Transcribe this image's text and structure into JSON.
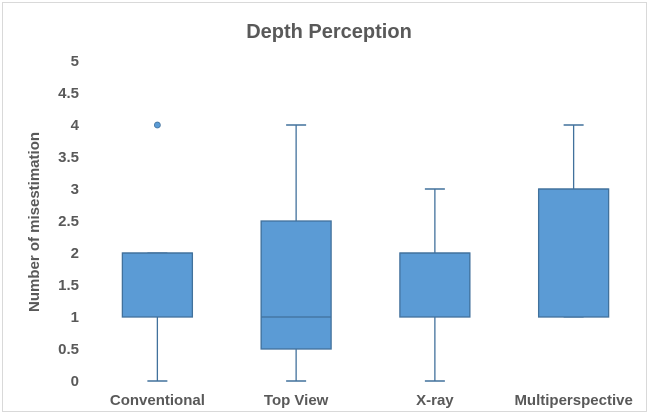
{
  "chart_data": {
    "type": "box",
    "title": "Depth Perception",
    "xlabel": "",
    "ylabel": "Number of misestimation",
    "ylim": [
      0,
      5
    ],
    "yticks": [
      "0",
      "0.5",
      "1",
      "1.5",
      "2",
      "2.5",
      "3",
      "3.5",
      "4",
      "4.5",
      "5"
    ],
    "grid": false,
    "legend": "none",
    "box_color": "#5b9bd5",
    "edge_color": "#41719c",
    "categories": [
      "Conventional",
      "Top View",
      "X-ray",
      "Multiperspective"
    ],
    "boxes": [
      {
        "category": "Conventional",
        "min": 0,
        "q1": 1,
        "median": 2,
        "q3": 2,
        "max": 2,
        "outliers": [
          4
        ]
      },
      {
        "category": "Top View",
        "min": 0,
        "q1": 0.5,
        "median": 1,
        "q3": 2.5,
        "max": 4,
        "outliers": []
      },
      {
        "category": "X-ray",
        "min": 0,
        "q1": 1,
        "median": 2,
        "q3": 2,
        "max": 3,
        "outliers": []
      },
      {
        "category": "Multiperspective",
        "min": 1,
        "q1": 1,
        "median": 3,
        "q3": 3,
        "max": 4,
        "outliers": []
      }
    ]
  }
}
